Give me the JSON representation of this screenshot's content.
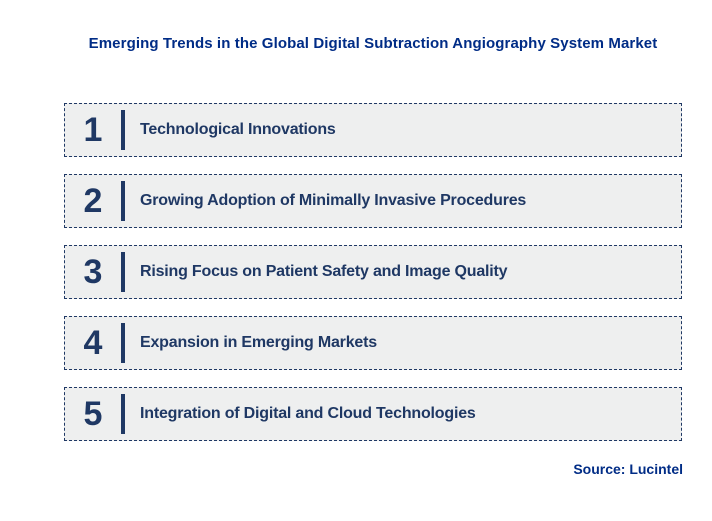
{
  "title": "Emerging Trends in the Global Digital Subtraction Angiography System Market",
  "source": "Source: Lucintel",
  "colors": {
    "navy": "#1f3864",
    "title_blue": "#002c86",
    "box_background": "#eeefef"
  },
  "trends": [
    {
      "number": "1",
      "label": "Technological Innovations"
    },
    {
      "number": "2",
      "label": "Growing Adoption of Minimally Invasive Procedures"
    },
    {
      "number": "3",
      "label": "Rising Focus on Patient Safety and Image Quality"
    },
    {
      "number": "4",
      "label": "Expansion in Emerging Markets"
    },
    {
      "number": "5",
      "label": "Integration of Digital and Cloud Technologies"
    }
  ]
}
